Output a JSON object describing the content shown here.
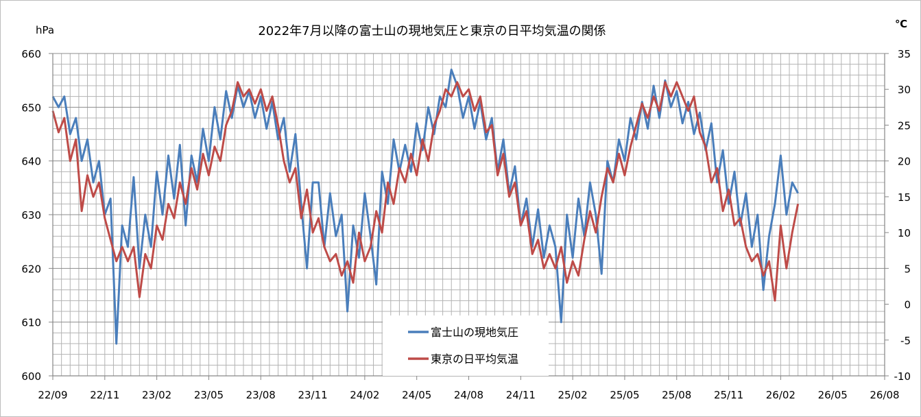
{
  "chart_data": {
    "type": "line",
    "title": "2022年7月以降の富士山の現地気圧と東京の日平均気温の関係",
    "ylabel": "hPa",
    "y2label": "℃",
    "ylim": [
      600,
      660
    ],
    "y2lim": [
      -10,
      35
    ],
    "xlim": [
      "2022-09-01",
      "2026-08-11"
    ],
    "yticks": [
      "600",
      "610",
      "620",
      "630",
      "640",
      "650",
      "660"
    ],
    "y2ticks": [
      "-10",
      "-5",
      "0",
      "5",
      "10",
      "15",
      "20",
      "25",
      "30",
      "35"
    ],
    "xticks": [
      {
        "date": "2022-09-01",
        "label": "22/09"
      },
      {
        "date": "2022-11-30",
        "label": "22/11"
      },
      {
        "date": "2023-02-28",
        "label": "23/02"
      },
      {
        "date": "2023-05-29",
        "label": "23/05"
      },
      {
        "date": "2023-08-27",
        "label": "23/08"
      },
      {
        "date": "2023-11-25",
        "label": "23/11"
      },
      {
        "date": "2024-02-23",
        "label": "24/02"
      },
      {
        "date": "2024-05-23",
        "label": "24/05"
      },
      {
        "date": "2024-08-21",
        "label": "24/08"
      },
      {
        "date": "2024-11-19",
        "label": "24/11"
      },
      {
        "date": "2025-02-17",
        "label": "25/02"
      },
      {
        "date": "2025-05-18",
        "label": "25/05"
      },
      {
        "date": "2025-08-16",
        "label": "25/08"
      },
      {
        "date": "2025-11-14",
        "label": "25/11"
      },
      {
        "date": "2026-02-12",
        "label": "26/02"
      },
      {
        "date": "2026-05-13",
        "label": "26/05"
      },
      {
        "date": "2026-08-11",
        "label": "26/08"
      }
    ],
    "grid": true,
    "legend_placement": "bottom-center",
    "x": [
      "2022-09-01",
      "2022-09-11",
      "2022-09-21",
      "2022-10-01",
      "2022-10-11",
      "2022-10-21",
      "2022-10-31",
      "2022-11-10",
      "2022-11-20",
      "2022-11-30",
      "2022-12-10",
      "2022-12-20",
      "2022-12-30",
      "2023-01-09",
      "2023-01-19",
      "2023-01-29",
      "2023-02-08",
      "2023-02-18",
      "2023-02-28",
      "2023-03-10",
      "2023-03-20",
      "2023-03-30",
      "2023-04-09",
      "2023-04-19",
      "2023-04-29",
      "2023-05-09",
      "2023-05-19",
      "2023-05-29",
      "2023-06-08",
      "2023-06-18",
      "2023-06-28",
      "2023-07-08",
      "2023-07-18",
      "2023-07-28",
      "2023-08-07",
      "2023-08-17",
      "2023-08-27",
      "2023-09-06",
      "2023-09-16",
      "2023-09-26",
      "2023-10-06",
      "2023-10-16",
      "2023-10-26",
      "2023-11-05",
      "2023-11-15",
      "2023-11-25",
      "2023-12-05",
      "2023-12-15",
      "2023-12-25",
      "2024-01-04",
      "2024-01-14",
      "2024-01-24",
      "2024-02-03",
      "2024-02-13",
      "2024-02-23",
      "2024-03-04",
      "2024-03-14",
      "2024-03-24",
      "2024-04-03",
      "2024-04-13",
      "2024-04-23",
      "2024-05-03",
      "2024-05-13",
      "2024-05-23",
      "2024-06-02",
      "2024-06-12",
      "2024-06-22",
      "2024-07-02",
      "2024-07-12",
      "2024-07-22",
      "2024-08-01",
      "2024-08-11",
      "2024-08-21",
      "2024-08-31",
      "2024-09-10",
      "2024-09-20",
      "2024-09-30",
      "2024-10-10",
      "2024-10-20",
      "2024-10-30",
      "2024-11-09",
      "2024-11-19",
      "2024-11-29",
      "2024-12-09",
      "2024-12-19",
      "2024-12-29",
      "2025-01-08",
      "2025-01-18",
      "2025-01-28",
      "2025-02-07",
      "2025-02-17",
      "2025-02-27",
      "2025-03-09",
      "2025-03-19",
      "2025-03-29",
      "2025-04-08",
      "2025-04-18",
      "2025-04-28",
      "2025-05-08",
      "2025-05-18",
      "2025-05-28",
      "2025-06-07",
      "2025-06-17",
      "2025-06-27",
      "2025-07-07",
      "2025-07-17",
      "2025-07-27",
      "2025-08-06",
      "2025-08-16",
      "2025-08-26",
      "2025-09-05",
      "2025-09-15",
      "2025-09-25",
      "2025-10-05",
      "2025-10-15",
      "2025-10-25",
      "2025-11-04",
      "2025-11-14",
      "2025-11-24",
      "2025-12-04",
      "2025-12-14",
      "2025-12-24",
      "2026-01-03",
      "2026-01-13",
      "2026-01-23",
      "2026-02-02",
      "2026-02-12",
      "2026-02-22",
      "2026-03-04",
      "2026-03-14"
    ],
    "series": [
      {
        "name": "富士山の現地気圧",
        "axis": "left",
        "color": "#4a7ebb",
        "values": [
          652,
          650,
          652,
          645,
          648,
          640,
          644,
          636,
          640,
          630,
          633,
          606,
          628,
          624,
          637,
          620,
          630,
          624,
          638,
          630,
          641,
          633,
          643,
          628,
          641,
          636,
          646,
          640,
          650,
          644,
          653,
          648,
          654,
          650,
          653,
          648,
          652,
          646,
          651,
          644,
          648,
          638,
          645,
          632,
          620,
          636,
          636,
          624,
          634,
          626,
          630,
          612,
          628,
          622,
          634,
          626,
          617,
          638,
          632,
          644,
          638,
          643,
          638,
          647,
          642,
          650,
          645,
          652,
          650,
          657,
          654,
          648,
          652,
          646,
          651,
          644,
          648,
          638,
          644,
          634,
          639,
          628,
          633,
          624,
          631,
          622,
          628,
          624,
          610,
          630,
          622,
          633,
          626,
          636,
          630,
          619,
          640,
          636,
          644,
          640,
          648,
          644,
          651,
          646,
          654,
          648,
          655,
          650,
          653,
          647,
          651,
          645,
          649,
          642,
          647,
          636,
          642,
          632,
          638,
          628,
          634,
          624,
          630,
          616,
          626,
          632,
          641,
          630,
          636,
          634
        ]
      },
      {
        "name": "東京の日平均気温",
        "axis": "right",
        "color": "#be4b48",
        "values": [
          27,
          24,
          26,
          20,
          23,
          13,
          18,
          15,
          17,
          12,
          9,
          6,
          8,
          6,
          8,
          1,
          7,
          5,
          11,
          9,
          14,
          12,
          17,
          14,
          19,
          16,
          21,
          18,
          22,
          20,
          25,
          27,
          31,
          29,
          30,
          28,
          30,
          27,
          29,
          25,
          20,
          17,
          19,
          12,
          16,
          10,
          12,
          8,
          6,
          7,
          4,
          6,
          3,
          10,
          6,
          8,
          13,
          10,
          17,
          14,
          19,
          17,
          21,
          18,
          23,
          20,
          25,
          27,
          30,
          29,
          31,
          29,
          30,
          27,
          29,
          24,
          25,
          18,
          21,
          15,
          17,
          11,
          13,
          7,
          9,
          5,
          7,
          5,
          8,
          3,
          6,
          4,
          9,
          13,
          10,
          15,
          19,
          17,
          21,
          18,
          22,
          25,
          28,
          26,
          29,
          27,
          31,
          29,
          31,
          29,
          27,
          29,
          24,
          22,
          17,
          19,
          13,
          16,
          11,
          12,
          8,
          6,
          7,
          4,
          6,
          0.5,
          11,
          5,
          10,
          14
        ]
      }
    ]
  }
}
